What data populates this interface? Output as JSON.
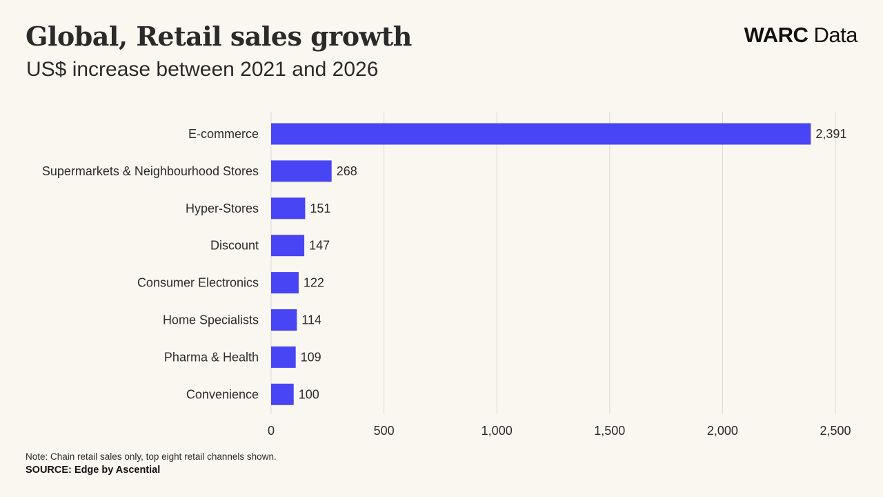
{
  "header": {
    "title": "Global, Retail sales growth",
    "subtitle": "US$ increase between 2021 and 2026"
  },
  "brand": {
    "bold": "WARC",
    "light": "Data"
  },
  "footer": {
    "note": "Note: Chain retail sales only, top eight retail channels shown.",
    "source": "SOURCE: Edge by Ascential"
  },
  "colors": {
    "bar": "#4845f5",
    "grid": "#dedad2",
    "text": "#2b2b2b",
    "background": "#faf7f0"
  },
  "chart_data": {
    "type": "bar",
    "orientation": "horizontal",
    "title": "Global, Retail sales growth",
    "subtitle": "US$ increase between 2021 and 2026",
    "xlabel": "",
    "ylabel": "",
    "categories": [
      "E-commerce",
      "Supermarkets & Neighbourhood Stores",
      "Hyper-Stores",
      "Discount",
      "Consumer Electronics",
      "Home Specialists",
      "Pharma & Health",
      "Convenience"
    ],
    "values": [
      2391,
      268,
      151,
      147,
      122,
      114,
      109,
      100
    ],
    "value_labels": [
      "2,391",
      "268",
      "151",
      "147",
      "122",
      "114",
      "109",
      "100"
    ],
    "xlim": [
      0,
      2500
    ],
    "x_ticks": [
      0,
      500,
      1000,
      1500,
      2000,
      2500
    ],
    "x_tick_labels": [
      "0",
      "500",
      "1,000",
      "1,500",
      "2,000",
      "2,500"
    ],
    "grid": "vertical",
    "legend": "none"
  }
}
